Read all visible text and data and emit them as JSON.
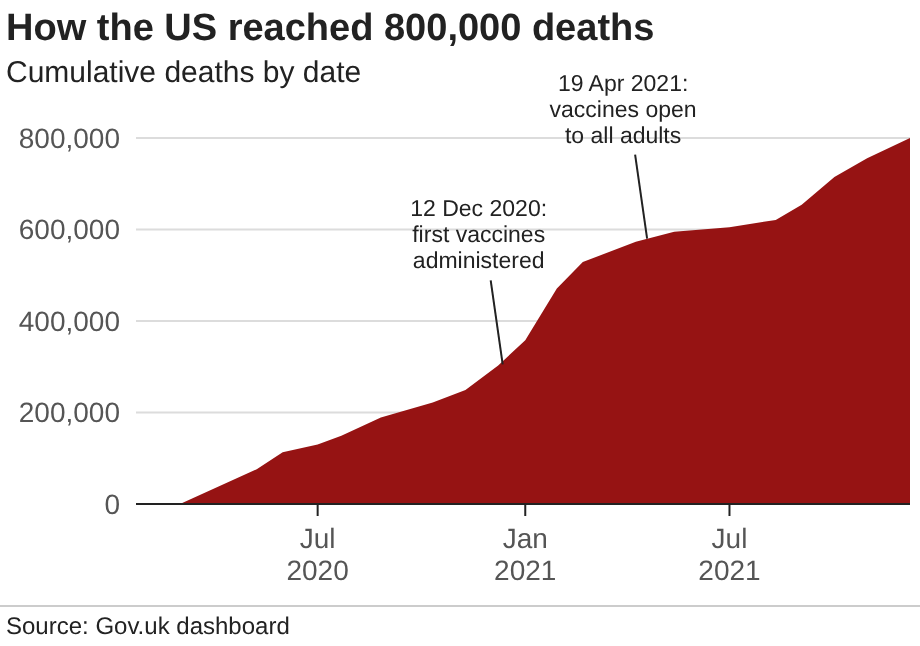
{
  "chart_data": {
    "type": "area",
    "title": "How the US reached 800,000 deaths",
    "subtitle": "Cumulative deaths by date",
    "x": [
      "2020-01-22",
      "2020-03-01",
      "2020-05-08",
      "2020-05-31",
      "2020-07-01",
      "2020-07-22",
      "2020-08-26",
      "2020-10-11",
      "2020-11-09",
      "2020-12-08",
      "2021-01-01",
      "2021-01-29",
      "2021-02-21",
      "2021-04-09",
      "2021-05-13",
      "2021-07-01",
      "2021-08-11",
      "2021-09-03",
      "2021-10-02",
      "2021-10-31",
      "2021-12-08"
    ],
    "series": [
      {
        "color": "#961313",
        "values": [
          0,
          0,
          76000,
          113000,
          130000,
          149000,
          189000,
          222000,
          249000,
          303000,
          358000,
          471000,
          529000,
          573000,
          595000,
          605000,
          621000,
          654000,
          715000,
          756000,
          800000
        ]
      }
    ],
    "xlim": [
      "2020-01-22",
      "2021-12-08"
    ],
    "xticks": [
      {
        "value": "2020-07-01",
        "label": "Jul\n2020"
      },
      {
        "value": "2021-01-01",
        "label": "Jan\n2021"
      },
      {
        "value": "2021-07-01",
        "label": "Jul\n2021"
      }
    ],
    "ylim": [
      0,
      800000
    ],
    "yticks": [
      {
        "value": 0,
        "label": "0"
      },
      {
        "value": 200000,
        "label": "200,000"
      },
      {
        "value": 400000,
        "label": "400,000"
      },
      {
        "value": 600000,
        "label": "600,000"
      },
      {
        "value": 800000,
        "label": "800,000"
      }
    ],
    "grid": "y",
    "annotations": [
      {
        "text": "12 Dec 2020:\nfirst vaccines\nadministered",
        "x": "2020-12-12",
        "y": 305000
      },
      {
        "text": "19 Apr 2021:\nvaccines open\nto all adults",
        "x": "2021-04-19",
        "y": 580000
      },
      "Source: Gov.uk dashboard"
    ]
  }
}
